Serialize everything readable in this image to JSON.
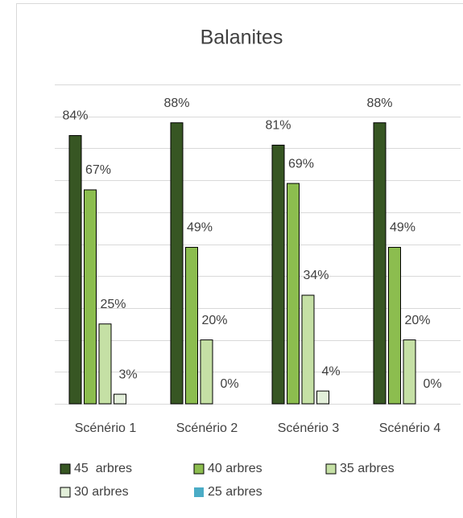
{
  "chart_data": {
    "type": "bar",
    "title": "Balanites",
    "categories": [
      "Scénério 1",
      "Scénério 2",
      "Scénério 3",
      "Scénério 4"
    ],
    "series": [
      {
        "name": "45  arbres",
        "color": "#375623",
        "values": [
          84,
          88,
          81,
          88
        ],
        "value_labels": [
          "84%",
          "88%",
          "81%",
          "88%"
        ]
      },
      {
        "name": "40 arbres",
        "color": "#8cbd4f",
        "values": [
          67,
          49,
          69,
          49
        ],
        "value_labels": [
          "67%",
          "49%",
          "69%",
          "49%"
        ]
      },
      {
        "name": "35 arbres",
        "color": "#c5e0a5",
        "values": [
          25,
          20,
          34,
          20
        ],
        "value_labels": [
          "25%",
          "20%",
          "34%",
          "20%"
        ]
      },
      {
        "name": "30 arbres",
        "color": "#e2efd9",
        "values": [
          3,
          0,
          4,
          0
        ],
        "value_labels": [
          "3%",
          "0%",
          "4%",
          "0%"
        ]
      },
      {
        "name": "25 arbres",
        "color": "#4bacc6",
        "values": [
          null,
          null,
          null,
          null
        ]
      }
    ],
    "ylim": [
      0,
      100
    ],
    "yticks": [
      0,
      10,
      20,
      30,
      40,
      50,
      60,
      70,
      80,
      90,
      100
    ],
    "grid": true,
    "legend": "bottom"
  }
}
